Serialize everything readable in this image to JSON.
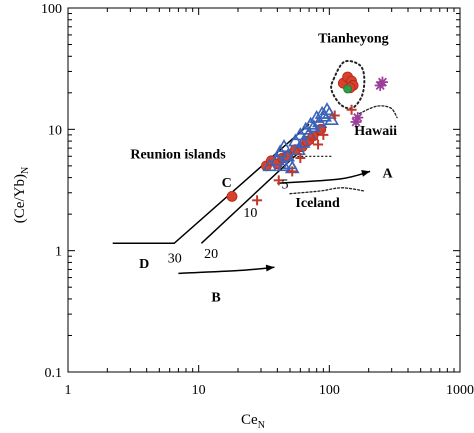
{
  "chart_data": {
    "type": "scatter",
    "xscale": "log",
    "yscale": "log",
    "xlim": [
      1,
      1000
    ],
    "ylim": [
      0.1,
      100
    ],
    "xticks": [
      "1",
      "10",
      "100",
      "1000"
    ],
    "yticks": [
      "0.1",
      "1",
      "10",
      "100"
    ],
    "xlabel_main": "Ce",
    "xlabel_sub": "N",
    "ylabel_main": "(Ce/Yb)",
    "ylabel_sub": "N",
    "grid": false,
    "colors": {
      "red_circle": "#d9412c",
      "red_circle_edge": "#b02a1a",
      "blue_triangle": "#3b63b8",
      "red_cross": "#c0392b",
      "purple_star": "#9b3f9b",
      "green_circle": "#2e9e4a",
      "dotted": "#222222"
    },
    "series": [
      {
        "marker": "circle",
        "color_key": "red_circle",
        "points": [
          [
            18,
            2.8
          ],
          [
            33,
            5.0
          ],
          [
            36,
            5.5
          ],
          [
            40,
            5.2
          ],
          [
            44,
            5.8
          ],
          [
            48,
            6.0
          ],
          [
            55,
            6.8
          ],
          [
            62,
            7.2
          ],
          [
            68,
            8.0
          ],
          [
            75,
            8.8
          ],
          [
            86,
            10.0
          ],
          [
            128,
            24
          ],
          [
            138,
            27
          ],
          [
            148,
            25
          ],
          [
            152,
            23
          ],
          [
            144,
            22
          ]
        ]
      },
      {
        "marker": "triangle-open",
        "color_key": "blue_triangle",
        "points": [
          [
            35,
            5.0
          ],
          [
            40,
            5.6
          ],
          [
            42,
            6.5
          ],
          [
            45,
            7.2
          ],
          [
            48,
            6.0
          ],
          [
            50,
            5.2
          ],
          [
            52,
            4.8
          ],
          [
            55,
            8.0
          ],
          [
            58,
            6.8
          ],
          [
            60,
            9.0
          ],
          [
            63,
            7.8
          ],
          [
            66,
            10.0
          ],
          [
            70,
            9.2
          ],
          [
            72,
            11.0
          ],
          [
            76,
            10.5
          ],
          [
            80,
            12.5
          ],
          [
            84,
            11.5
          ],
          [
            88,
            13.5
          ],
          [
            92,
            12.8
          ],
          [
            96,
            14.5
          ],
          [
            100,
            13.5
          ],
          [
            104,
            12.0
          ],
          [
            45,
            5.0
          ]
        ]
      },
      {
        "marker": "cross",
        "color_key": "red_cross",
        "points": [
          [
            28,
            2.6
          ],
          [
            41,
            3.8
          ],
          [
            52,
            4.5
          ],
          [
            60,
            5.8
          ],
          [
            75,
            8.3
          ],
          [
            82,
            7.5
          ],
          [
            90,
            9.0
          ],
          [
            110,
            13.0
          ],
          [
            148,
            14.5
          ]
        ]
      },
      {
        "marker": "star",
        "color_key": "purple_star",
        "points": [
          [
            160,
            11.5
          ],
          [
            165,
            12.5
          ],
          [
            245,
            23
          ],
          [
            255,
            24.5
          ]
        ]
      },
      {
        "marker": "circle",
        "color_key": "green_circle",
        "points": [
          [
            138,
            21.5
          ]
        ]
      }
    ],
    "lines": [
      {
        "name": "curve-D",
        "points": [
          [
            2.2,
            1.15
          ],
          [
            6.5,
            1.15
          ],
          [
            70,
            11
          ]
        ]
      },
      {
        "name": "curve-lower",
        "points": [
          [
            10.5,
            1.15
          ],
          [
            95,
            10.5
          ]
        ]
      },
      {
        "name": "reunion-dashed",
        "dashed": true,
        "points": [
          [
            40,
            6.0
          ],
          [
            105,
            6.0
          ]
        ]
      }
    ],
    "arrows": [
      {
        "name": "arrow-B",
        "points": [
          [
            7,
            0.65
          ],
          [
            22,
            0.69
          ],
          [
            38,
            0.73
          ]
        ]
      },
      {
        "name": "arrow-A",
        "points": [
          [
            40,
            3.6
          ],
          [
            120,
            3.9
          ],
          [
            205,
            4.5
          ]
        ]
      }
    ],
    "dotted_shapes": [
      {
        "name": "tianheyong-field",
        "points": [
          [
            108,
            26
          ],
          [
            130,
            36
          ],
          [
            170,
            34
          ],
          [
            185,
            27
          ],
          [
            178,
            19
          ],
          [
            150,
            15
          ],
          [
            122,
            16
          ],
          [
            104,
            21
          ]
        ]
      },
      {
        "name": "hawaii-curve",
        "points": [
          [
            170,
            13.5
          ],
          [
            230,
            15.5
          ],
          [
            295,
            15
          ],
          [
            330,
            12.5
          ]
        ]
      },
      {
        "name": "iceland-curve",
        "points": [
          [
            50,
            2.95
          ],
          [
            85,
            3.1
          ],
          [
            125,
            3.3
          ],
          [
            185,
            3.1
          ]
        ]
      }
    ],
    "annotations": [
      {
        "key": "tianheyong",
        "text": "Tianheyong",
        "x": 82,
        "y": 52,
        "bold": true
      },
      {
        "key": "hawaii",
        "text": "Hawaii",
        "x": 155,
        "y": 9.0,
        "bold": true
      },
      {
        "key": "reunion",
        "text": "Reunion islands",
        "x": 3.0,
        "y": 5.75,
        "bold": true
      },
      {
        "key": "iceland",
        "text": "Iceland",
        "x": 55,
        "y": 2.3,
        "bold": true
      },
      {
        "key": "label_A",
        "text": "A",
        "x": 255,
        "y": 4.0,
        "bold": true
      },
      {
        "key": "label_B",
        "text": "B",
        "x": 12.5,
        "y": 0.38,
        "bold": true
      },
      {
        "key": "label_C",
        "text": "C",
        "x": 15,
        "y": 3.35,
        "bold": true
      },
      {
        "key": "label_D",
        "text": "D",
        "x": 3.5,
        "y": 0.72,
        "bold": true
      },
      {
        "key": "label_5",
        "text": "5",
        "x": 43,
        "y": 3.25,
        "bold": false
      },
      {
        "key": "label_10",
        "text": "10",
        "x": 22,
        "y": 1.9,
        "bold": false
      },
      {
        "key": "label_20",
        "text": "20",
        "x": 11,
        "y": 0.87,
        "bold": false
      },
      {
        "key": "label_30",
        "text": "30",
        "x": 5.8,
        "y": 0.8,
        "bold": false
      }
    ]
  }
}
